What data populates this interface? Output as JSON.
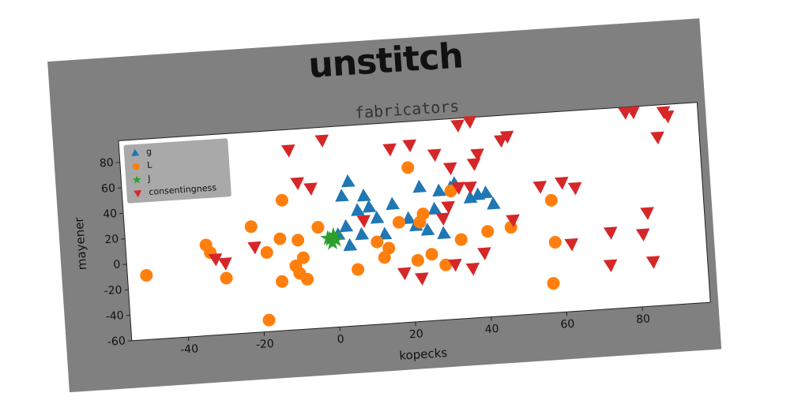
{
  "chart_data": {
    "type": "scatter",
    "suptitle": "unstitch",
    "title": "fabricators",
    "xlabel": "kopecks",
    "ylabel": "mayener",
    "xlim": [
      -55,
      98
    ],
    "ylim": [
      -60,
      97
    ],
    "xticks": [
      -40,
      -20,
      0,
      20,
      40,
      60,
      80
    ],
    "yticks": [
      -60,
      -40,
      -20,
      0,
      20,
      40,
      60,
      80
    ],
    "grid": false,
    "legend": "upper left",
    "series": [
      {
        "name": "g",
        "color": "#1f77b4",
        "marker": "^",
        "x": [
          2.8,
          4.7,
          8.6,
          9.8,
          16,
          23.4,
          28.5,
          32.7,
          38.7,
          42.6,
          27,
          24.8,
          20,
          11.7,
          7.4,
          3.4,
          1.2,
          4.1,
          13.5,
          21.8,
          29,
          6.7,
          36.6,
          31.6,
          40.8
        ],
        "y": [
          42,
          53,
          41,
          32,
          33,
          45,
          41,
          46,
          36,
          28,
          27,
          11,
          21,
          23,
          11,
          18,
          12,
          3,
          10,
          15,
          7.5,
          30,
          34,
          43,
          37
        ]
      },
      {
        "name": "L",
        "color": "#ff7f0e",
        "marker": "o",
        "x": [
          -50,
          -33.8,
          -32.8,
          -29,
          -21.6,
          -17.9,
          -14.2,
          -13,
          -9.5,
          -10.5,
          -8.4,
          -9.6,
          -7.7,
          -14.4,
          -4,
          -18.5,
          5.8,
          11.3,
          14.3,
          13,
          17.4,
          20.7,
          22.9,
          23.9,
          21.7,
          25.5,
          29,
          31.6,
          33.5,
          40.6,
          46.8,
          57.9,
          58.2,
          57
        ],
        "y": [
          -9.7,
          11,
          4.8,
          -16,
          23,
          2,
          12,
          42,
          10,
          -10,
          -4,
          -16,
          -21,
          -21.5,
          19,
          -51,
          -16,
          4.5,
          -1,
          -8,
          18.7,
          61,
          17.7,
          24,
          -12,
          -8,
          -17,
          40.5,
          2,
          7,
          9,
          28,
          -5,
          -37
        ]
      },
      {
        "name": "J",
        "color": "#2ca02c",
        "marker": "*",
        "x": [
          -1,
          -0.5,
          0,
          -1.5,
          0.5
        ],
        "y": [
          9,
          6,
          12,
          10,
          8
        ]
      },
      {
        "name": "consentingness",
        "color": "#d62728",
        "marker": "v",
        "x": [
          -10.4,
          -1.4,
          -8.6,
          -5.2,
          -21,
          -31.5,
          -29,
          8.2,
          16.3,
          21.6,
          28,
          31.9,
          34.6,
          37.8,
          38.2,
          39.3,
          45.7,
          47.4,
          33.7,
          36.8,
          29.1,
          30.7,
          39.4,
          36.1,
          31.5,
          18,
          22.5,
          47.5,
          55.2,
          61,
          64.4,
          62.5,
          73,
          72.4,
          78.9,
          81,
          89,
          90,
          87,
          83,
          81.5,
          83.7
        ],
        "y": [
          81,
          87,
          55,
          50,
          7,
          -0.3,
          -4,
          22,
          76.6,
          78.7,
          70,
          58.7,
          91.7,
          94,
          60.7,
          68,
          77.6,
          80.4,
          43,
          42.7,
          19.7,
          28.5,
          -9.5,
          -21,
          -17,
          -21,
          -26,
          14.7,
          39.5,
          41.6,
          36.7,
          -7,
          0,
          -25.5,
          93,
          93,
          91.5,
          88,
          72,
          13.5,
          -3,
          -25
        ]
      }
    ]
  }
}
